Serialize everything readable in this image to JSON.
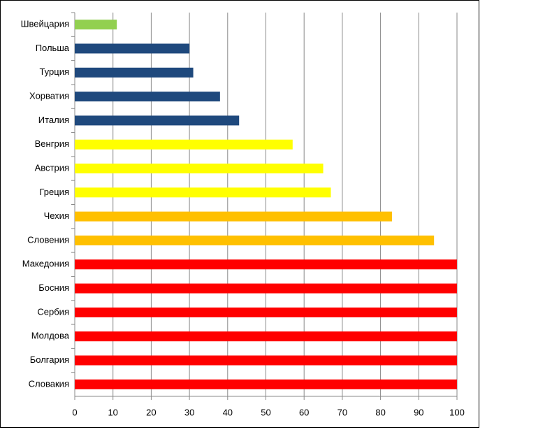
{
  "chart_data": {
    "type": "hbar",
    "categories": [
      "Швейцария",
      "Польша",
      "Турция",
      "Хорватия",
      "Италия",
      "Венгрия",
      "Австрия",
      "Греция",
      "Чехия",
      "Словения",
      "Македония",
      "Босния",
      "Сербия",
      "Молдова",
      "Болгария",
      "Словакия"
    ],
    "values": [
      11,
      30,
      31,
      38,
      43,
      57,
      65,
      67,
      83,
      94,
      100,
      100,
      100,
      100,
      100,
      100
    ],
    "colors": [
      "#92d050",
      "#1f497d",
      "#1f497d",
      "#1f497d",
      "#1f497d",
      "#ffff00",
      "#ffff00",
      "#ffff00",
      "#ffc000",
      "#ffc000",
      "#ff0000",
      "#ff0000",
      "#ff0000",
      "#ff0000",
      "#ff0000",
      "#ff0000"
    ],
    "xlim": [
      0,
      100
    ],
    "xticks": [
      0,
      10,
      20,
      30,
      40,
      50,
      60,
      70,
      80,
      90,
      100
    ],
    "grid": true
  }
}
